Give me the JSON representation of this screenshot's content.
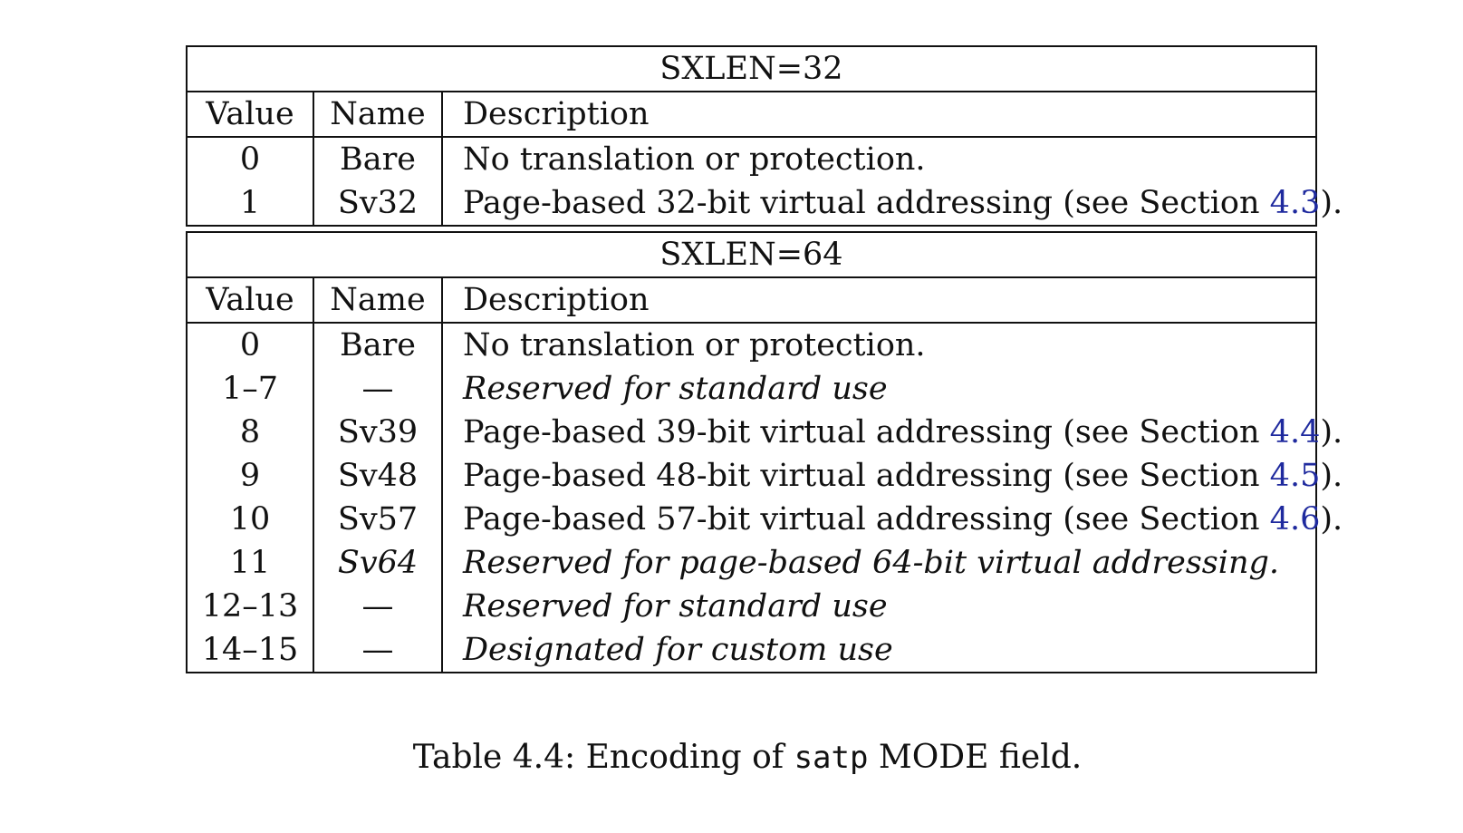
{
  "sxlen32": {
    "title": "SXLEN=32",
    "headers": {
      "value": "Value",
      "name": "Name",
      "description": "Description"
    },
    "rows": [
      {
        "value": "0",
        "name": "Bare",
        "desc_pre": "No translation or protection.",
        "ref": "",
        "desc_post": ""
      },
      {
        "value": "1",
        "name": "Sv32",
        "desc_pre": "Page-based 32-bit virtual addressing (see Section ",
        "ref": "4.3",
        "desc_post": ")."
      }
    ]
  },
  "sxlen64": {
    "title": "SXLEN=64",
    "headers": {
      "value": "Value",
      "name": "Name",
      "description": "Description"
    },
    "rows": [
      {
        "value": "0",
        "name": "Bare",
        "desc_pre": "No translation or protection.",
        "ref": "",
        "desc_post": ""
      },
      {
        "value": "1–7",
        "name": "—",
        "desc_pre": "Reserved for standard use",
        "ref": "",
        "desc_post": ""
      },
      {
        "value": "8",
        "name": "Sv39",
        "desc_pre": "Page-based 39-bit virtual addressing (see Section ",
        "ref": "4.4",
        "desc_post": ")."
      },
      {
        "value": "9",
        "name": "Sv48",
        "desc_pre": "Page-based 48-bit virtual addressing (see Section ",
        "ref": "4.5",
        "desc_post": ")."
      },
      {
        "value": "10",
        "name": "Sv57",
        "desc_pre": "Page-based 57-bit virtual addressing (see Section ",
        "ref": "4.6",
        "desc_post": ")."
      },
      {
        "value": "11",
        "name": "Sv64",
        "desc_pre": "Reserved for page-based 64-bit virtual addressing.",
        "ref": "",
        "desc_post": ""
      },
      {
        "value": "12–13",
        "name": "—",
        "desc_pre": "Reserved for standard use",
        "ref": "",
        "desc_post": ""
      },
      {
        "value": "14–15",
        "name": "—",
        "desc_pre": "Designated for custom use",
        "ref": "",
        "desc_post": ""
      }
    ]
  },
  "caption": {
    "prefix": "Table 4.4: Encoding of ",
    "code": "satp",
    "suffix": " MODE field."
  },
  "colors": {
    "text": "#111111",
    "link": "#1f2a9e"
  }
}
